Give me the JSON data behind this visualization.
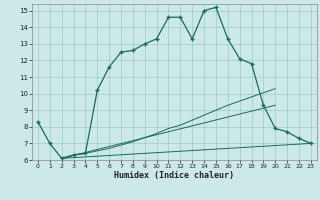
{
  "xlabel": "Humidex (Indice chaleur)",
  "bg_color": "#cce8e8",
  "grid_color": "#99cccc",
  "line_color": "#1a6b5a",
  "xlim": [
    -0.5,
    23.5
  ],
  "ylim": [
    6,
    15.4
  ],
  "xticks": [
    0,
    1,
    2,
    3,
    4,
    5,
    6,
    7,
    8,
    9,
    10,
    11,
    12,
    13,
    14,
    15,
    16,
    17,
    18,
    19,
    20,
    21,
    22,
    23
  ],
  "yticks": [
    6,
    7,
    8,
    9,
    10,
    11,
    12,
    13,
    14,
    15
  ],
  "main_x": [
    0,
    1,
    2,
    3,
    4,
    5,
    6,
    7,
    8,
    9,
    10,
    11,
    12,
    13,
    14,
    15,
    16,
    17,
    18,
    19,
    20,
    21,
    22,
    23
  ],
  "main_y": [
    8.3,
    7.0,
    6.1,
    6.3,
    6.4,
    10.2,
    11.6,
    12.5,
    12.6,
    13.0,
    13.3,
    14.6,
    14.6,
    13.3,
    15.0,
    15.2,
    13.3,
    12.1,
    11.8,
    9.3,
    7.9,
    7.7,
    7.3,
    7.0
  ],
  "line2_x": [
    2,
    3,
    4,
    5,
    6,
    7,
    8,
    9,
    10,
    11,
    12,
    13,
    14,
    15,
    16,
    17,
    18,
    19,
    20
  ],
  "line2_y": [
    6.1,
    6.3,
    6.4,
    6.55,
    6.7,
    6.9,
    7.1,
    7.35,
    7.6,
    7.9,
    8.1,
    8.4,
    8.7,
    9.0,
    9.3,
    9.55,
    9.8,
    10.05,
    10.3
  ],
  "line3_x": [
    2,
    20
  ],
  "line3_y": [
    6.1,
    9.3
  ],
  "line4_x": [
    2,
    23
  ],
  "line4_y": [
    6.1,
    7.0
  ],
  "marker_indices": [
    0,
    1,
    2,
    3,
    4,
    5,
    6,
    7,
    8,
    9,
    10,
    11,
    12,
    13,
    14,
    15,
    16,
    17,
    18,
    19,
    20,
    21,
    22,
    23
  ]
}
